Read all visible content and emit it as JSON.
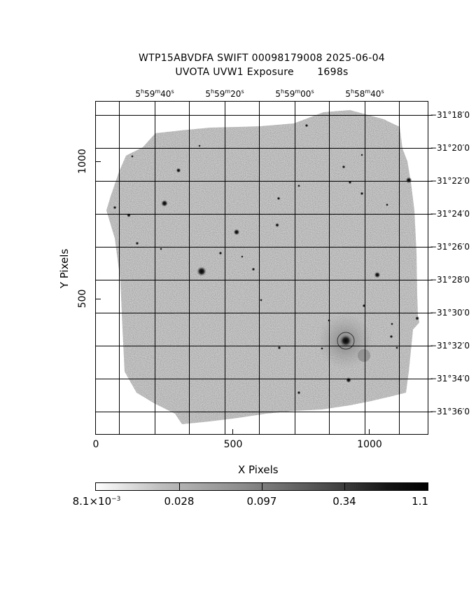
{
  "header": {
    "line1": "WTP15ABVDFA SWIFT 00098179008 2025-06-04",
    "line2": "UVOTA UVW1 Exposure       1698s"
  },
  "axes": {
    "xlabel": "X Pixels",
    "ylabel": "Y Pixels",
    "xticks": [
      "0",
      "500",
      "1000"
    ],
    "yticks": [
      "500",
      "1000"
    ]
  },
  "ra_labels": [
    {
      "h": "5",
      "m": "59",
      "s": "40"
    },
    {
      "h": "5",
      "m": "59",
      "s": "20"
    },
    {
      "h": "5",
      "m": "59",
      "s": "00"
    },
    {
      "h": "5",
      "m": "58",
      "s": "40"
    }
  ],
  "dec_labels": [
    "−31°18′0",
    "−31°20′0",
    "−31°22′0",
    "−31°24′0",
    "−31°26′0",
    "−31°28′0",
    "−31°30′0",
    "−31°32′0",
    "−31°34′0",
    "−31°36′0"
  ],
  "colorbar": {
    "labels": [
      "8.1×10",
      "0.028",
      "0.097",
      "0.34",
      "1.1"
    ],
    "exponent": "−3"
  }
}
